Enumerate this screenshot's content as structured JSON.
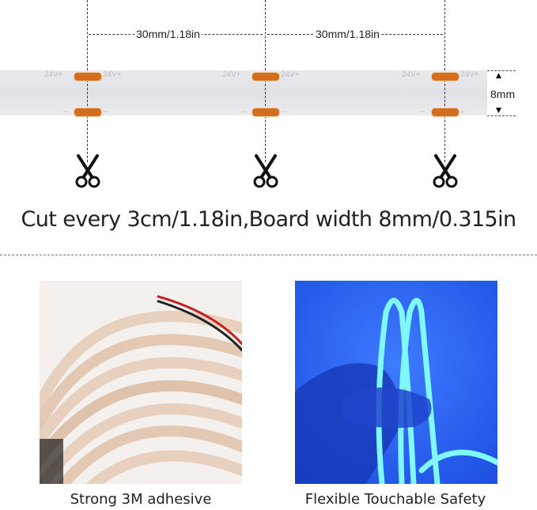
{
  "diagram": {
    "spacing_label_1": "30mm/1.18in",
    "spacing_label_2": "30mm/1.18in",
    "width_label": "8mm",
    "pad_label_positive": "24V+",
    "pad_label_negative": "–",
    "pad_color": "#d46d1c",
    "icon": "scissors-icon"
  },
  "headline": "Cut every 3cm/1.18in,Board width 8mm/0.315in",
  "photos": [
    {
      "caption": "Strong 3M adhesive"
    },
    {
      "caption": "Flexible Touchable Safety",
      "accent": "#2f6cff"
    }
  ]
}
